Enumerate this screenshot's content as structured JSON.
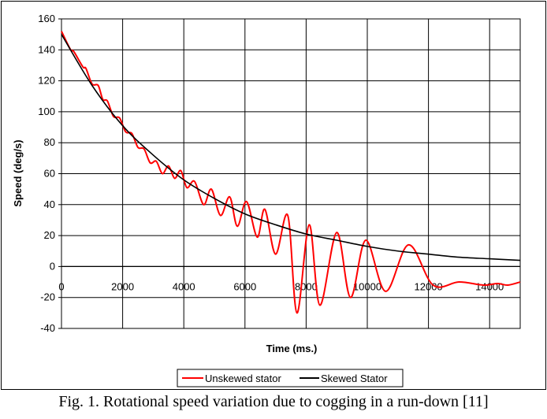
{
  "caption": "Fig. 1. Rotational speed variation due to cogging in a run-down [11]",
  "chart_data": {
    "type": "line",
    "xlabel": "Time (ms.)",
    "ylabel": "Speed (deg/s)",
    "xlim": [
      0,
      15000
    ],
    "ylim": [
      -40,
      160
    ],
    "x_ticks": [
      0,
      2000,
      4000,
      6000,
      8000,
      10000,
      12000,
      14000
    ],
    "x_tick_labels": [
      "0",
      "2000",
      "4000",
      "6000",
      "8000",
      "10000",
      "12000",
      "14000"
    ],
    "y_ticks": [
      -40,
      -20,
      0,
      20,
      40,
      60,
      80,
      100,
      120,
      140,
      160
    ],
    "y_tick_labels": [
      "-40",
      "-20",
      "0",
      "20",
      "40",
      "60",
      "80",
      "100",
      "120",
      "140",
      "160"
    ],
    "grid": true,
    "legend_position": "bottom-right",
    "series": [
      {
        "name": "Unskewed stator",
        "color": "#ff0000",
        "x": [
          0,
          300,
          400,
          700,
          800,
          1000,
          1200,
          1350,
          1500,
          1700,
          1900,
          2100,
          2300,
          2500,
          2700,
          2900,
          3100,
          3300,
          3500,
          3700,
          3900,
          4100,
          4350,
          4650,
          4900,
          5200,
          5500,
          5750,
          6050,
          6400,
          6650,
          7000,
          7400,
          7700,
          8100,
          8450,
          9000,
          9450,
          9950,
          10600,
          11350,
          12150,
          13000,
          13800,
          14250,
          14600,
          15000
        ],
        "y": [
          152,
          140,
          139,
          129,
          128,
          118,
          117,
          108,
          107,
          97,
          96,
          87,
          86,
          77,
          76,
          67,
          68,
          60,
          65,
          57,
          62,
          51,
          55,
          40,
          50,
          33,
          45,
          26,
          42,
          19,
          37,
          8,
          33,
          -30,
          27,
          -25,
          22,
          -20,
          17,
          -16,
          14,
          -12,
          -10,
          -12,
          -11,
          -12,
          -10
        ]
      },
      {
        "name": "Skewed Stator",
        "color": "#000000",
        "x": [
          0,
          1000,
          2000,
          3000,
          4000,
          5000,
          6000,
          7000,
          8000,
          9000,
          10000,
          11000,
          12000,
          13000,
          14000,
          15000
        ],
        "y": [
          150,
          117,
          91,
          72,
          56,
          44,
          34,
          27,
          21,
          17,
          13,
          10,
          8,
          6,
          5,
          4
        ]
      }
    ]
  }
}
